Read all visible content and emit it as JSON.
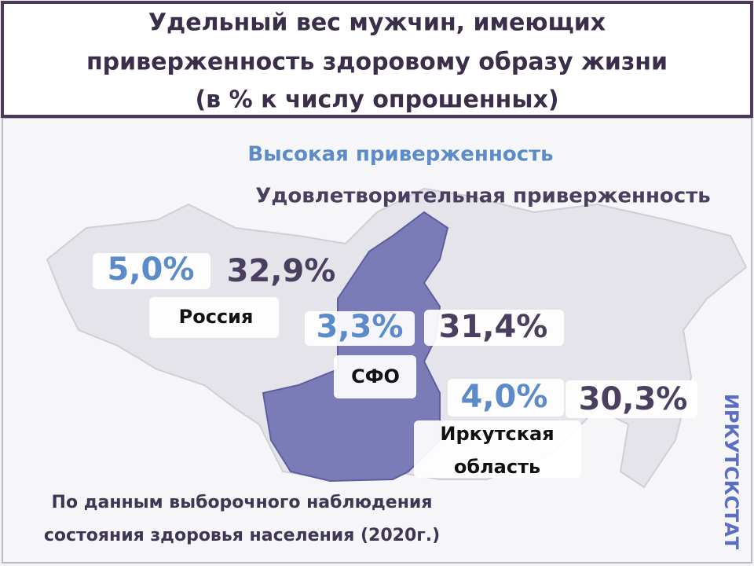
{
  "title": [
    "Удельный вес мужчин, имеющих",
    "приверженность здоровому образу жизни",
    "(в % к числу опрошенных)"
  ],
  "legend": {
    "high": "Высокая приверженность",
    "satisfactory": "Удовлетворительная приверженность"
  },
  "regions": [
    {
      "name": [
        "Россия"
      ],
      "high": "5,0%",
      "satisfactory": "32,9%"
    },
    {
      "name": [
        "СФО"
      ],
      "high": "3,3%",
      "satisfactory": "31,4%"
    },
    {
      "name": [
        "Иркутская",
        "область"
      ],
      "high": "4,0%",
      "satisfactory": "30,3%"
    }
  ],
  "source": [
    "По данным выборочного наблюдения",
    "состояния здоровья населения (2020г.)"
  ],
  "brand": "ИРКУТСКСТАТ"
}
